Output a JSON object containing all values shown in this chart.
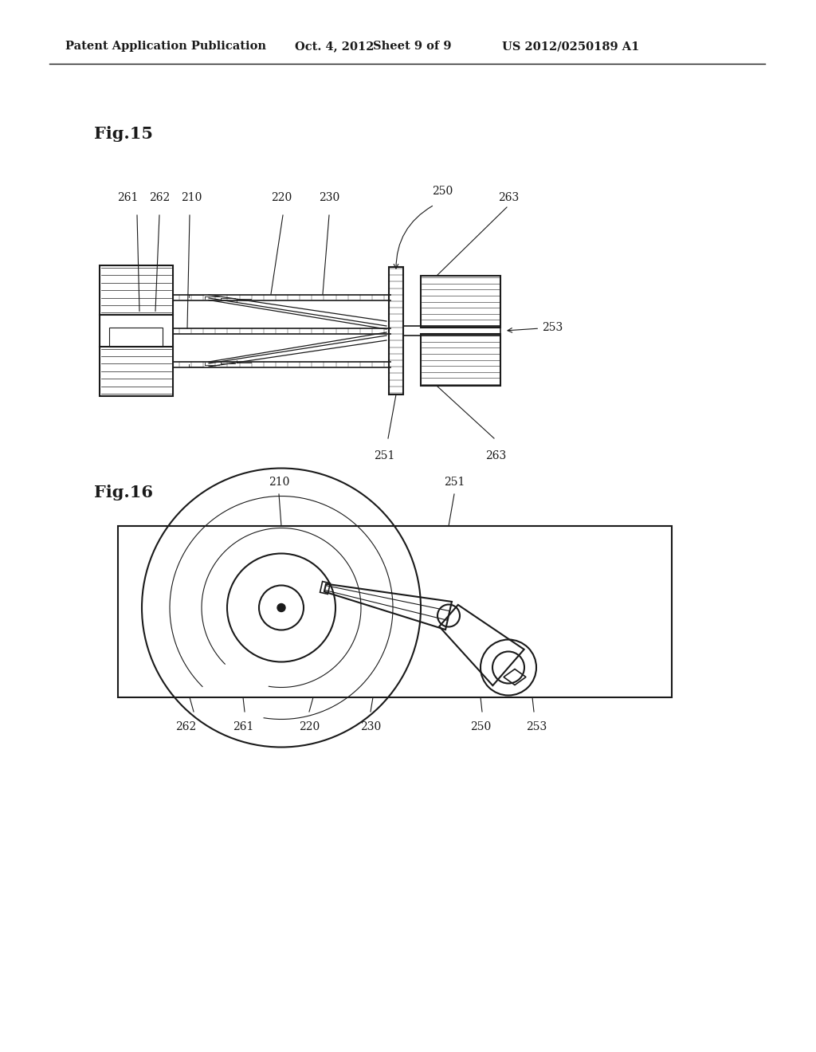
{
  "bg_color": "#ffffff",
  "line_color": "#1a1a1a",
  "header_text": "Patent Application Publication",
  "header_date": "Oct. 4, 2012",
  "header_sheet": "Sheet 9 of 9",
  "header_patent": "US 2012/0250189 A1",
  "fig15_label": "Fig.15",
  "fig16_label": "Fig.16"
}
